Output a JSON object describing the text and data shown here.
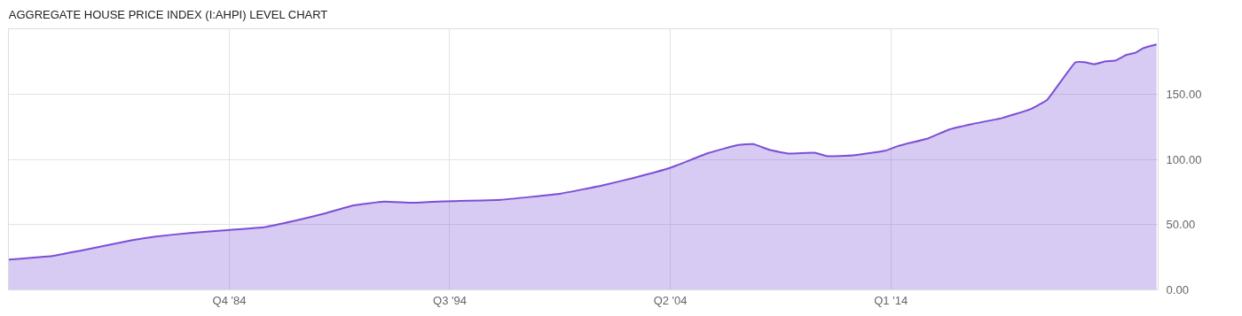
{
  "chart_data": {
    "type": "area",
    "title": "AGGREGATE HOUSE PRICE INDEX (I:AHPI) LEVEL CHART",
    "x": [
      "1975-01",
      "1976-12",
      "1978-07",
      "1980-06",
      "1981-07",
      "1983-01",
      "1984-10",
      "1986-05",
      "1987-08",
      "1988-12",
      "1990-04",
      "1991-08",
      "1992-11",
      "1994-03",
      "1996-10",
      "1999-06",
      "2001-05",
      "2002-09",
      "2004-04",
      "2005-12",
      "2007-04",
      "2007-12",
      "2008-09",
      "2009-07",
      "2010-09",
      "2011-03",
      "2012-05",
      "2013-10",
      "2014-05",
      "2015-09",
      "2016-08",
      "2017-08",
      "2018-12",
      "2020-03",
      "2020-12",
      "2022-03",
      "2022-08",
      "2023-01",
      "2023-07",
      "2023-12",
      "2024-06",
      "2024-11",
      "2025-03",
      "2025-10"
    ],
    "series": [
      {
        "color": "#7b4fd6",
        "values": [
          23.0,
          25.7,
          30.9,
          37.7,
          40.7,
          43.4,
          45.7,
          48.0,
          52.5,
          58.2,
          64.6,
          67.5,
          66.6,
          67.7,
          68.9,
          73.7,
          80.3,
          85.9,
          93.5,
          104.8,
          111.0,
          111.7,
          107.1,
          104.4,
          105.0,
          102.5,
          103.0,
          106.6,
          110.3,
          116.2,
          123.0,
          127.1,
          131.7,
          138.5,
          145.8,
          174.6,
          174.6,
          173.1,
          175.3,
          175.8,
          180.3,
          182.1,
          185.5,
          188.3
        ]
      }
    ],
    "xlim": [
      "1975-01-01",
      "2025-10-20"
    ],
    "xticks": [
      {
        "value": "1984-10-01",
        "label": "Q4 '84"
      },
      {
        "value": "1994-07-01",
        "label": "Q3 '94"
      },
      {
        "value": "2004-04-01",
        "label": "Q2 '04"
      },
      {
        "value": "2014-01-01",
        "label": "Q1 '14"
      }
    ],
    "ylim": [
      0,
      200
    ],
    "yticks": [
      {
        "value": 0,
        "label": "0.00"
      },
      {
        "value": 50,
        "label": "50.00"
      },
      {
        "value": 100,
        "label": "100.00"
      },
      {
        "value": 150,
        "label": "150.00"
      }
    ],
    "grid": true,
    "marker": "none"
  }
}
